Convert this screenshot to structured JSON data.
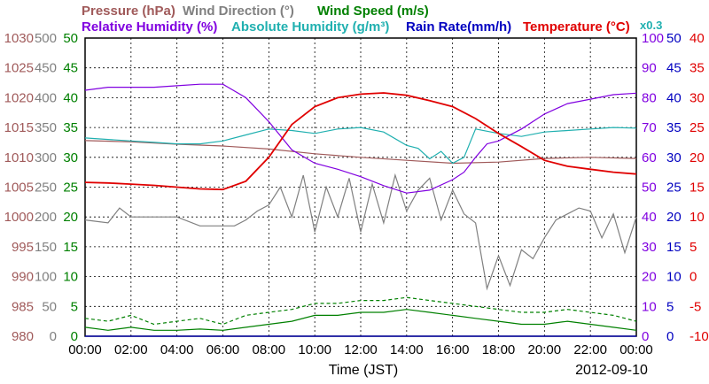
{
  "chart_data": {
    "type": "line",
    "date": "2012-09-10",
    "xlabel": "Time (JST)",
    "x_ticks": [
      "00:00",
      "02:00",
      "04:00",
      "06:00",
      "08:00",
      "10:00",
      "12:00",
      "14:00",
      "16:00",
      "18:00",
      "20:00",
      "22:00",
      "00:00"
    ],
    "grid": true,
    "legend": [
      {
        "key": "pressure",
        "text": "Pressure (hPa)",
        "color": "#a05a5a"
      },
      {
        "key": "wind_dir",
        "text": "Wind Direction (°)",
        "color": "#808080"
      },
      {
        "key": "wind_speed",
        "text": "Wind Speed (m/s)",
        "color": "#008000"
      },
      {
        "key": "rh",
        "text": "Relative Humidity (%)",
        "color": "#8000e0"
      },
      {
        "key": "ah",
        "text": "Absolute Humidity (g/m³)",
        "color": "#20b0b0"
      },
      {
        "key": "rain",
        "text": "Rain Rate(mm/h)",
        "color": "#0000c0"
      },
      {
        "key": "temp",
        "text": "Temperature (°C)",
        "color": "#e00000"
      }
    ],
    "ah_multiplier_label": "x0.3",
    "left_axes": {
      "pressure": {
        "ticks": [
          "1030",
          "1025",
          "1020",
          "1015",
          "1010",
          "1005",
          "1000",
          "995",
          "990",
          "985",
          "980"
        ],
        "range": [
          980,
          1030
        ],
        "color": "#a05a5a"
      },
      "wind_dir": {
        "ticks": [
          "500",
          "450",
          "400",
          "350",
          "300",
          "250",
          "200",
          "150",
          "100",
          "50",
          "0"
        ],
        "range": [
          0,
          500
        ],
        "color": "#808080"
      },
      "wind_speed": {
        "ticks": [
          "50",
          "45",
          "40",
          "35",
          "30",
          "25",
          "20",
          "15",
          "10",
          "5",
          "0"
        ],
        "range": [
          0,
          50
        ],
        "color": "#008000"
      }
    },
    "right_axes": {
      "rh": {
        "ticks": [
          "100",
          "90",
          "80",
          "70",
          "60",
          "50",
          "40",
          "30",
          "20",
          "10",
          "0"
        ],
        "range": [
          0,
          100
        ],
        "color": "#8000e0"
      },
      "rain": {
        "ticks": [
          "50",
          "45",
          "40",
          "35",
          "30",
          "25",
          "20",
          "15",
          "10",
          "5",
          "0"
        ],
        "range": [
          0,
          50
        ],
        "color": "#0000c0"
      },
      "temp": {
        "ticks": [
          "40",
          "35",
          "30",
          "25",
          "20",
          "15",
          "10",
          "5",
          "0",
          "-5",
          "-10"
        ],
        "range": [
          -10,
          40
        ],
        "color": "#e00000"
      }
    },
    "series": [
      {
        "name": "Temperature (°C)",
        "key": "temp",
        "x_hours": [
          0,
          1,
          2,
          3,
          4,
          5,
          6,
          7,
          8,
          9,
          10,
          11,
          12,
          13,
          14,
          15,
          16,
          17,
          18,
          19,
          20,
          21,
          22,
          23,
          24
        ],
        "values": [
          15.8,
          15.7,
          15.5,
          15.3,
          15.0,
          14.7,
          14.6,
          16.0,
          20.0,
          25.5,
          28.5,
          30.0,
          30.6,
          30.8,
          30.4,
          29.5,
          28.5,
          26.5,
          24.0,
          21.8,
          19.5,
          18.5,
          18.0,
          17.5,
          17.2
        ]
      },
      {
        "name": "Relative Humidity (%)",
        "key": "rh",
        "x_hours": [
          0,
          1,
          2,
          3,
          4,
          5,
          6,
          7,
          8,
          9,
          10,
          11,
          12,
          13,
          14,
          15,
          16,
          16.5,
          17,
          17.5,
          18,
          19,
          20,
          21,
          22,
          23,
          24
        ],
        "values": [
          82.5,
          83.5,
          83.5,
          83.5,
          84.0,
          84.5,
          84.5,
          80.0,
          72.0,
          62.5,
          58.0,
          56.0,
          53.5,
          50.5,
          48.0,
          49.0,
          52.5,
          55.0,
          60.0,
          64.5,
          65.5,
          69.5,
          74.5,
          78.0,
          79.5,
          81.0,
          81.5
        ]
      },
      {
        "name": "Absolute Humidity (g/m³)",
        "key": "ah",
        "x_hours": [
          0,
          1,
          2,
          3,
          4,
          5,
          6,
          7,
          8,
          9,
          10,
          11,
          12,
          13,
          14,
          14.5,
          15,
          15.5,
          16,
          16.5,
          17,
          18,
          19,
          20,
          21,
          22,
          23,
          24
        ],
        "values": [
          66.5,
          66.0,
          65.5,
          65.0,
          64.5,
          64.5,
          65.5,
          67.5,
          69.5,
          69.0,
          68.0,
          69.5,
          70.0,
          68.5,
          64.0,
          63.0,
          59.5,
          62.0,
          58.0,
          60.0,
          69.5,
          68.0,
          67.0,
          68.5,
          69.0,
          69.5,
          70.0,
          69.8
        ]
      },
      {
        "name": "Pressure (hPa)",
        "key": "pressure",
        "x_hours": [
          0,
          2,
          4,
          6,
          8,
          10,
          12,
          14,
          16,
          18,
          20,
          22,
          24
        ],
        "values": [
          1012.8,
          1012.6,
          1012.2,
          1011.9,
          1011.4,
          1010.6,
          1010.0,
          1009.5,
          1009.0,
          1009.2,
          1009.8,
          1010.0,
          1009.8
        ]
      },
      {
        "name": "Wind Direction (°)",
        "key": "wind_dir",
        "x_hours": [
          0,
          1,
          1.5,
          2,
          3,
          4,
          5,
          6,
          6.5,
          7,
          7.5,
          8,
          8.5,
          9,
          9.5,
          10,
          10.5,
          11,
          11.5,
          12,
          12.5,
          13,
          13.5,
          14,
          14.5,
          15,
          15.5,
          16,
          16.5,
          17,
          17.5,
          18,
          18.5,
          19,
          19.5,
          20,
          20.5,
          21,
          21.5,
          22,
          22.5,
          23,
          23.5,
          24
        ],
        "values": [
          195,
          190,
          215,
          200,
          200,
          200,
          185,
          185,
          185,
          195,
          210,
          220,
          250,
          200,
          270,
          175,
          250,
          200,
          265,
          175,
          255,
          190,
          270,
          210,
          245,
          265,
          195,
          245,
          205,
          190,
          80,
          135,
          85,
          145,
          130,
          165,
          195,
          205,
          215,
          210,
          165,
          205,
          140,
          200
        ]
      },
      {
        "name": "Wind Speed (m/s)",
        "key": "wind_speed",
        "x_hours": [
          0,
          1,
          2,
          3,
          4,
          5,
          6,
          7,
          8,
          9,
          10,
          11,
          12,
          13,
          14,
          15,
          16,
          17,
          18,
          19,
          20,
          21,
          22,
          23,
          24
        ],
        "values": [
          1.5,
          1.0,
          1.5,
          1.0,
          1.0,
          1.2,
          1.0,
          1.5,
          2.0,
          2.5,
          3.5,
          3.5,
          4.0,
          4.0,
          4.5,
          4.0,
          3.5,
          3.0,
          2.5,
          2.0,
          2.0,
          2.5,
          2.0,
          1.5,
          1.0
        ],
        "gust_values": [
          3.0,
          2.5,
          3.5,
          2.0,
          2.5,
          3.0,
          2.0,
          3.5,
          4.0,
          4.5,
          5.5,
          5.5,
          6.0,
          6.0,
          6.5,
          6.0,
          5.5,
          5.0,
          4.5,
          4.0,
          4.0,
          4.5,
          4.0,
          3.5,
          2.5
        ]
      },
      {
        "name": "Rain Rate(mm/h)",
        "key": "rain",
        "x_hours": [
          0,
          24
        ],
        "values": [
          0,
          0
        ]
      }
    ]
  }
}
